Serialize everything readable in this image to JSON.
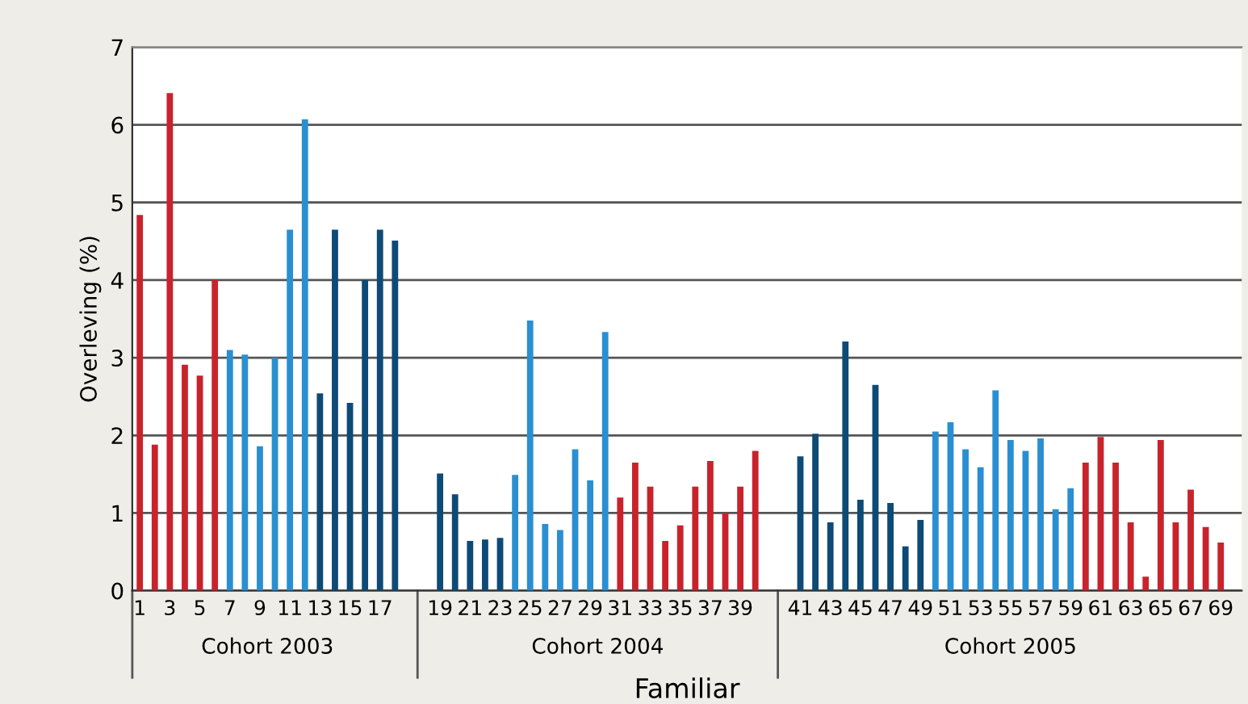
{
  "chart_data": {
    "type": "bar",
    "xlabel": "Familiar",
    "ylabel": "Overleving (%)",
    "categories": [
      "1",
      null,
      "3",
      null,
      "5",
      null,
      "7",
      null,
      "9",
      null,
      "11",
      null,
      "13",
      null,
      "15",
      null,
      "17",
      null,
      null,
      null,
      "19",
      null,
      "21",
      null,
      "23",
      null,
      "25",
      null,
      "27",
      null,
      "29",
      null,
      "31",
      null,
      "33",
      null,
      "35",
      null,
      "37",
      null,
      "39",
      null,
      null,
      null,
      "41",
      null,
      "43",
      null,
      "45",
      null,
      "47",
      null,
      "49",
      null,
      "51",
      null,
      "53",
      null,
      "55",
      null,
      "57",
      null,
      "59",
      null,
      "61",
      null,
      "63",
      null,
      "65",
      null,
      "67",
      null,
      "69"
    ],
    "values": [
      4.84,
      1.88,
      6.41,
      2.91,
      2.77,
      4.0,
      3.1,
      3.04,
      1.86,
      3.0,
      4.65,
      6.07,
      2.54,
      4.65,
      2.42,
      4.0,
      4.65,
      4.51,
      null,
      null,
      1.51,
      1.24,
      0.64,
      0.66,
      0.68,
      1.49,
      3.48,
      0.86,
      0.78,
      1.82,
      1.42,
      3.33,
      1.2,
      1.65,
      1.34,
      0.64,
      0.84,
      1.34,
      1.67,
      1.0,
      1.34,
      1.8,
      null,
      null,
      1.73,
      2.02,
      0.88,
      3.21,
      1.17,
      2.65,
      1.13,
      0.57,
      0.91,
      2.05,
      2.17,
      1.82,
      1.59,
      2.58,
      1.94,
      1.8,
      1.96,
      1.05,
      1.32,
      1.65,
      1.98,
      1.65,
      0.88,
      0.18,
      1.94,
      0.88,
      1.3,
      0.82,
      0.62
    ],
    "colors": [
      "#c8232c",
      "#c8232c",
      "#c8232c",
      "#c8232c",
      "#c8232c",
      "#c8232c",
      "#2a8fd1",
      "#2a8fd1",
      "#2a8fd1",
      "#2a8fd1",
      "#2a8fd1",
      "#2a8fd1",
      "#0d4a76",
      "#0d4a76",
      "#0d4a76",
      "#0d4a76",
      "#0d4a76",
      "#0d4a76",
      null,
      null,
      "#0d4a76",
      "#0d4a76",
      "#0d4a76",
      "#0d4a76",
      "#0d4a76",
      "#2a8fd1",
      "#2a8fd1",
      "#2a8fd1",
      "#2a8fd1",
      "#2a8fd1",
      "#2a8fd1",
      "#2a8fd1",
      "#c8232c",
      "#c8232c",
      "#c8232c",
      "#c8232c",
      "#c8232c",
      "#c8232c",
      "#c8232c",
      "#c8232c",
      "#c8232c",
      "#c8232c",
      null,
      null,
      "#0d4a76",
      "#0d4a76",
      "#0d4a76",
      "#0d4a76",
      "#0d4a76",
      "#0d4a76",
      "#0d4a76",
      "#0d4a76",
      "#0d4a76",
      "#2a8fd1",
      "#2a8fd1",
      "#2a8fd1",
      "#2a8fd1",
      "#2a8fd1",
      "#2a8fd1",
      "#2a8fd1",
      "#2a8fd1",
      "#2a8fd1",
      "#2a8fd1",
      "#c8232c",
      "#c8232c",
      "#c8232c",
      "#c8232c",
      "#c8232c",
      "#c8232c",
      "#c8232c",
      "#c8232c",
      "#c8232c",
      "#c8232c"
    ],
    "ylim": [
      0,
      7
    ],
    "yticks": [
      0,
      1,
      2,
      3,
      4,
      5,
      6,
      7
    ],
    "grid": "y",
    "annotations": [
      "Cohort 2003",
      "Cohort 2004",
      "Cohort 2005"
    ]
  }
}
